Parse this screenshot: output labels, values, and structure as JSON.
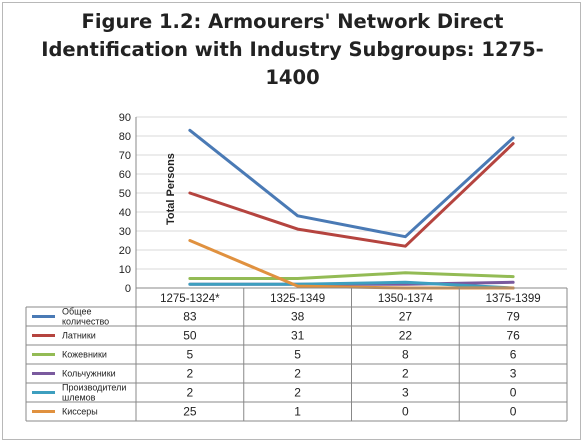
{
  "title_lines": [
    "Figure 1.2: Armourers' Network Direct",
    "Identification with Industry Subgroups: 1275-",
    "1400"
  ],
  "chart_data": {
    "type": "line",
    "title": "Figure 1.2: Armourers' Network Direct Identification with Industry Subgroups: 1275-1400",
    "ylabel": "Total Persons",
    "xlabel": "",
    "ylim": [
      0,
      90
    ],
    "yticks": [
      0,
      10,
      20,
      30,
      40,
      50,
      60,
      70,
      80,
      90
    ],
    "grid": true,
    "legend": "data-table",
    "categories": [
      "1275-1324*",
      "1325-1349",
      "1350-1374",
      "1375-1399"
    ],
    "series": [
      {
        "name": "Общее количество",
        "label_lines": [
          "Общее",
          "количество"
        ],
        "color": "#4a7ab5",
        "values": [
          83,
          38,
          27,
          79
        ]
      },
      {
        "name": "Латники",
        "label_lines": [
          "Латники"
        ],
        "color": "#b5443f",
        "values": [
          50,
          31,
          22,
          76
        ]
      },
      {
        "name": "Кожевники",
        "label_lines": [
          "Кожевники"
        ],
        "color": "#93bb55",
        "values": [
          5,
          5,
          8,
          6
        ]
      },
      {
        "name": "Кольчужники",
        "label_lines": [
          "Кольчужники"
        ],
        "color": "#7a5a9e",
        "values": [
          2,
          2,
          2,
          3
        ]
      },
      {
        "name": "Производители шлемов",
        "label_lines": [
          "Производители",
          "шлемов"
        ],
        "color": "#3d9fbf",
        "values": [
          2,
          2,
          3,
          0
        ]
      },
      {
        "name": "Киссеры",
        "label_lines": [
          "Киссеры"
        ],
        "color": "#e0913f",
        "values": [
          25,
          1,
          0,
          0
        ]
      }
    ]
  }
}
